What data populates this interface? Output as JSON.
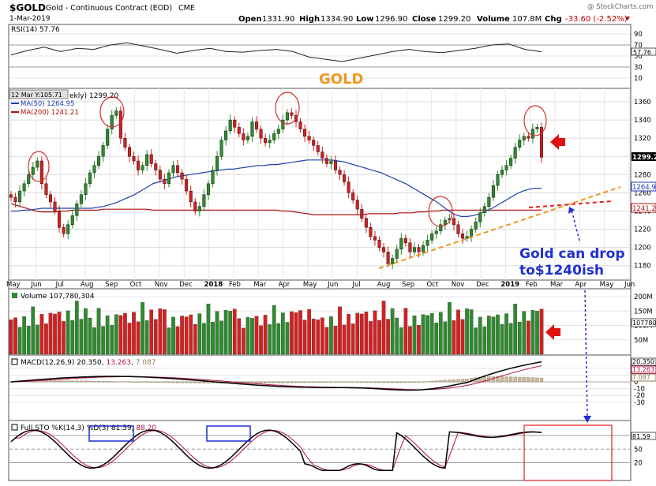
{
  "header": {
    "symbol": "$GOLD",
    "name": "Gold - Continuous Contract (EOD)",
    "exchange": "CME",
    "date": "1-Mar-2019",
    "open_label": "Open",
    "open": "1331.90",
    "high_label": "High",
    "high": "1334.90",
    "low_label": "Low",
    "low": "1296.90",
    "close_label": "Close",
    "close": "1299.20",
    "volume_label": "Volume",
    "volume": "107.8M",
    "chg_label": "Chg",
    "chg": "-33.60 (-2.52%)",
    "watermark": "@ StockCharts.com"
  },
  "rsi": {
    "label": "RSI(14) 57.76",
    "value": 57.76,
    "value_tag": "57.76",
    "ticks": [
      "90",
      "70",
      "50",
      "30",
      "10"
    ],
    "values": [
      52,
      60,
      66,
      58,
      64,
      62,
      70,
      74,
      68,
      62,
      55,
      60,
      64,
      58,
      57,
      60,
      62,
      58,
      48,
      44,
      40,
      46,
      52,
      58,
      62,
      58,
      56,
      60,
      64,
      70,
      72,
      62,
      57.76
    ]
  },
  "price": {
    "overlay_label": "GOLD",
    "title_visible": "ekly) 1299.20",
    "crosshair_tag": "12 Mar Y:105.71",
    "ma50_label": "MA(50) 1264.95",
    "ma200_label": "MA(200) 1241.21",
    "price_tag": "1299.2",
    "ma50_tag": "1264.95",
    "ma200_tag": "1241.2",
    "y_ticks": [
      "1360",
      "1340",
      "1320",
      "1300",
      "1280",
      "1260",
      "1240",
      "1220",
      "1200",
      "1180"
    ],
    "x_labels": [
      "May",
      "Jun",
      "Jul",
      "Aug",
      "Sep",
      "Oct",
      "Nov",
      "Dec",
      "2018",
      "Feb",
      "Mar",
      "Apr",
      "May",
      "Jun",
      "Jul",
      "Aug",
      "Sep",
      "Oct",
      "Nov",
      "Dec",
      "2019",
      "Feb",
      "Mar",
      "Apr",
      "May",
      "Jun"
    ],
    "annotation_line1": "Gold can drop",
    "annotation_line2": "to$1240ish",
    "colors": {
      "up": "#2e8b2e",
      "down": "#d42020",
      "ma50": "#1f3fb0",
      "ma200": "#b01010",
      "trend": "#f0961e",
      "circle": "#d03030",
      "arrow": "#e01010",
      "annot": "#1f2fcf"
    }
  },
  "volume": {
    "label": "Volume 107,780,304",
    "value_tag": "107780",
    "ticks": [
      "200M",
      "150M",
      "100M",
      "50M"
    ]
  },
  "macd": {
    "label_prefix": "MACD(12,26,9)",
    "macd": "20.350",
    "signal": "13.263",
    "hist": "7.087",
    "tags": [
      "20.350",
      "13.263",
      "7.087"
    ],
    "ticks": [
      "20",
      "10",
      "0",
      "-10",
      "-20",
      "-30"
    ]
  },
  "sto": {
    "label_prefix": "Full STO %K(14,3) %D(3)",
    "k": "81.59",
    "d": "88.20",
    "value_tag": "81.59",
    "ticks": [
      "80",
      "50",
      "20"
    ]
  },
  "chart_data": {
    "type": "candlestick",
    "title": "$GOLD Gold - Continuous Contract (EOD) CME",
    "ylim": [
      1160,
      1375
    ],
    "closes": [
      1255,
      1250,
      1262,
      1270,
      1280,
      1288,
      1295,
      1270,
      1258,
      1250,
      1240,
      1222,
      1215,
      1225,
      1235,
      1248,
      1258,
      1270,
      1282,
      1290,
      1300,
      1312,
      1330,
      1345,
      1350,
      1320,
      1310,
      1300,
      1295,
      1285,
      1290,
      1302,
      1292,
      1285,
      1275,
      1270,
      1282,
      1290,
      1282,
      1275,
      1262,
      1250,
      1240,
      1245,
      1258,
      1270,
      1285,
      1300,
      1318,
      1328,
      1340,
      1332,
      1325,
      1318,
      1322,
      1338,
      1330,
      1320,
      1315,
      1318,
      1325,
      1330,
      1340,
      1348,
      1345,
      1338,
      1330,
      1322,
      1318,
      1312,
      1305,
      1298,
      1292,
      1295,
      1285,
      1280,
      1272,
      1260,
      1252,
      1242,
      1232,
      1222,
      1212,
      1208,
      1200,
      1195,
      1182,
      1188,
      1198,
      1210,
      1205,
      1195,
      1200,
      1195,
      1202,
      1208,
      1215,
      1218,
      1225,
      1230,
      1232,
      1225,
      1215,
      1210,
      1212,
      1220,
      1228,
      1238,
      1245,
      1255,
      1268,
      1280,
      1285,
      1290,
      1298,
      1310,
      1318,
      1322,
      1320,
      1330,
      1332,
      1299
    ],
    "ma50": [
      1240,
      1240,
      1241,
      1241,
      1242,
      1243,
      1243,
      1243,
      1243,
      1243,
      1243,
      1243,
      1243,
      1243,
      1244,
      1245,
      1247,
      1249,
      1252,
      1255,
      1258,
      1262,
      1266,
      1270,
      1272,
      1274,
      1276,
      1278,
      1279,
      1280,
      1281,
      1282,
      1283,
      1284,
      1285,
      1286,
      1286,
      1287,
      1288,
      1289,
      1290,
      1290,
      1291,
      1291,
      1292,
      1293,
      1294,
      1295,
      1296,
      1296,
      1296,
      1296,
      1296,
      1295,
      1294,
      1292,
      1290,
      1288,
      1286,
      1284,
      1282,
      1279,
      1276,
      1273,
      1270,
      1266,
      1262,
      1258,
      1254,
      1250,
      1245,
      1240,
      1236,
      1234,
      1234,
      1235,
      1237,
      1240,
      1243,
      1247,
      1251,
      1255,
      1259,
      1262,
      1264,
      1265,
      1265
    ],
    "ma200": [
      1248,
      1246,
      1244,
      1242,
      1240,
      1239,
      1239,
      1239,
      1240,
      1240,
      1241,
      1241,
      1241,
      1241,
      1241,
      1242,
      1242,
      1242,
      1242,
      1242,
      1242,
      1242,
      1242,
      1241,
      1241,
      1241,
      1241,
      1241,
      1241,
      1241,
      1241,
      1241,
      1241,
      1241,
      1241,
      1241,
      1241,
      1241,
      1241,
      1241,
      1241,
      1241,
      1241,
      1241,
      1240,
      1240,
      1239,
      1238,
      1237,
      1236,
      1236,
      1236,
      1236,
      1236,
      1236,
      1236,
      1236,
      1236,
      1237,
      1237,
      1237,
      1237,
      1237,
      1238,
      1238,
      1238,
      1239,
      1239,
      1240,
      1240,
      1241,
      1241,
      1241,
      1241,
      1241,
      1241,
      1241,
      1241,
      1241,
      1241,
      1241,
      1241,
      1241,
      1241,
      1241,
      1241,
      1241.21
    ],
    "last_close": 1299.2,
    "ma50_last": 1264.95,
    "ma200_last": 1241.21
  }
}
